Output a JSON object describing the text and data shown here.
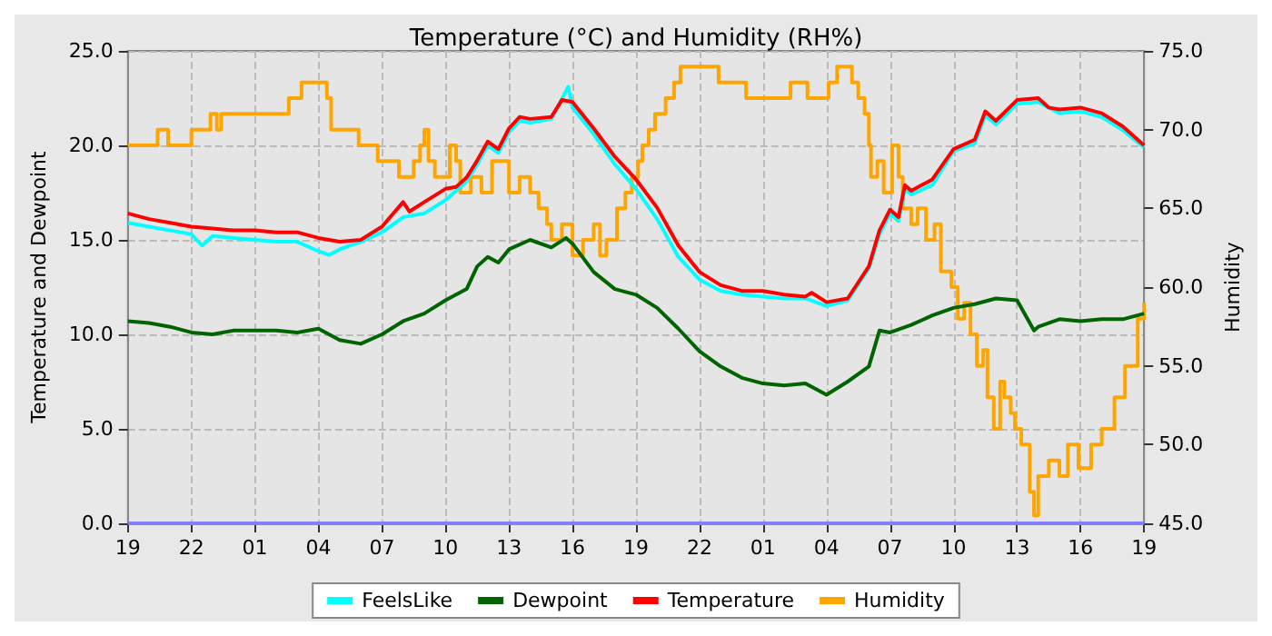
{
  "chart_data": {
    "type": "line",
    "title": "Temperature (°C) and Humidity (RH%)",
    "ylabel": "Temperature and Dewpoint",
    "y2label": "Humidity",
    "xlim": [
      "--01-01T19:00",
      "--01-03T19:00"
    ],
    "xticks": [
      {
        "value": "--01-01T19:00",
        "label": "19"
      },
      {
        "value": "--01-01T22:00",
        "label": "22"
      },
      {
        "value": "--01-02T01:00",
        "label": "01"
      },
      {
        "value": "--01-02T04:00",
        "label": "04"
      },
      {
        "value": "--01-02T07:00",
        "label": "07"
      },
      {
        "value": "--01-02T10:00",
        "label": "10"
      },
      {
        "value": "--01-02T13:00",
        "label": "13"
      },
      {
        "value": "--01-02T16:00",
        "label": "16"
      },
      {
        "value": "--01-02T19:00",
        "label": "19"
      },
      {
        "value": "--01-02T22:00",
        "label": "22"
      },
      {
        "value": "--01-03T01:00",
        "label": "01"
      },
      {
        "value": "--01-03T04:00",
        "label": "04"
      },
      {
        "value": "--01-03T07:00",
        "label": "07"
      },
      {
        "value": "--01-03T10:00",
        "label": "10"
      },
      {
        "value": "--01-03T13:00",
        "label": "13"
      },
      {
        "value": "--01-03T16:00",
        "label": "16"
      },
      {
        "value": "--01-03T19:00",
        "label": "19"
      }
    ],
    "ylim": [
      0,
      25
    ],
    "yticks": [
      {
        "value": 0,
        "label": "0.0"
      },
      {
        "value": 5,
        "label": "5.0"
      },
      {
        "value": 10,
        "label": "10.0"
      },
      {
        "value": 15,
        "label": "15.0"
      },
      {
        "value": 20,
        "label": "20.0"
      },
      {
        "value": 25,
        "label": "25.0"
      }
    ],
    "y2lim": [
      45,
      75
    ],
    "y2ticks": [
      {
        "value": 45,
        "label": "45.0"
      },
      {
        "value": 50,
        "label": "50.0"
      },
      {
        "value": 55,
        "label": "55.0"
      },
      {
        "value": 60,
        "label": "60.0"
      },
      {
        "value": 65,
        "label": "65.0"
      },
      {
        "value": 70,
        "label": "70.0"
      },
      {
        "value": 75,
        "label": "75.0"
      }
    ],
    "grid": true,
    "legend": "bottom",
    "marker": "none",
    "line_style": "solid",
    "series": [
      {
        "name": "FeelsLike",
        "color": "#00ffff",
        "x": [
          "--01-01T19:00",
          "--01-01T20:00",
          "--01-01T21:00",
          "--01-01T22:00",
          "--01-01T22:30",
          "--01-01T23:00",
          "--01-02T00:00",
          "--01-02T01:00",
          "--01-02T02:00",
          "--01-02T03:00",
          "--01-02T04:00",
          "--01-02T04:30",
          "--01-02T05:00",
          "--01-02T06:00",
          "--01-02T07:00",
          "--01-02T08:00",
          "--01-02T09:00",
          "--01-02T10:00",
          "--01-02T10:30",
          "--01-02T11:00",
          "--01-02T11:30",
          "--01-02T12:00",
          "--01-02T12:30",
          "--01-02T13:00",
          "--01-02T13:30",
          "--01-02T14:00",
          "--01-02T15:00",
          "--01-02T15:48",
          "--01-02T16:00",
          "--01-02T17:00",
          "--01-02T18:00",
          "--01-02T19:00",
          "--01-02T20:00",
          "--01-02T21:00",
          "--01-02T22:00",
          "--01-02T23:00",
          "--01-03T00:00",
          "--01-03T01:00",
          "--01-03T02:00",
          "--01-03T03:00",
          "--01-03T04:00",
          "--01-03T05:00",
          "--01-03T06:00",
          "--01-03T06:30",
          "--01-03T07:00",
          "--01-03T07:24",
          "--01-03T07:42",
          "--01-03T08:00",
          "--01-03T09:00",
          "--01-03T10:00",
          "--01-03T11:00",
          "--01-03T11:30",
          "--01-03T12:00",
          "--01-03T13:00",
          "--01-03T14:00",
          "--01-03T15:00",
          "--01-03T16:00",
          "--01-03T17:00",
          "--01-03T18:00",
          "--01-03T19:00"
        ],
        "values": [
          15.9,
          15.7,
          15.5,
          15.3,
          14.7,
          15.2,
          15.1,
          15.0,
          14.9,
          14.9,
          14.4,
          14.2,
          14.5,
          14.9,
          15.4,
          16.2,
          16.4,
          17.1,
          17.6,
          18.1,
          19.0,
          20.0,
          19.6,
          20.7,
          21.3,
          21.2,
          21.4,
          23.1,
          22.0,
          20.6,
          19.0,
          17.7,
          16.1,
          14.1,
          12.9,
          12.3,
          12.1,
          12.0,
          11.9,
          11.9,
          11.5,
          11.8,
          13.5,
          15.3,
          16.4,
          16.0,
          17.7,
          17.4,
          17.9,
          19.7,
          20.1,
          21.6,
          21.1,
          22.2,
          22.3,
          21.7,
          21.8,
          21.5,
          20.8,
          19.9
        ]
      },
      {
        "name": "Dewpoint",
        "color": "#006400",
        "x": [
          "--01-01T19:00",
          "--01-01T20:00",
          "--01-01T21:00",
          "--01-01T22:00",
          "--01-01T23:00",
          "--01-02T00:00",
          "--01-02T01:00",
          "--01-02T02:00",
          "--01-02T03:00",
          "--01-02T04:00",
          "--01-02T05:00",
          "--01-02T06:00",
          "--01-02T07:00",
          "--01-02T08:00",
          "--01-02T09:00",
          "--01-02T10:00",
          "--01-02T10:30",
          "--01-02T11:00",
          "--01-02T11:30",
          "--01-02T12:00",
          "--01-02T12:30",
          "--01-02T13:00",
          "--01-02T14:00",
          "--01-02T15:00",
          "--01-02T15:42",
          "--01-02T16:00",
          "--01-02T17:00",
          "--01-02T18:00",
          "--01-02T19:00",
          "--01-02T20:00",
          "--01-02T21:00",
          "--01-02T22:00",
          "--01-02T23:00",
          "--01-03T00:00",
          "--01-03T01:00",
          "--01-03T02:00",
          "--01-03T03:00",
          "--01-03T04:00",
          "--01-03T05:00",
          "--01-03T06:00",
          "--01-03T06:30",
          "--01-03T07:00",
          "--01-03T08:00",
          "--01-03T09:00",
          "--01-03T10:00",
          "--01-03T11:00",
          "--01-03T12:00",
          "--01-03T13:00",
          "--01-03T13:48",
          "--01-03T14:00",
          "--01-03T15:00",
          "--01-03T16:00",
          "--01-03T17:00",
          "--01-03T18:00",
          "--01-03T19:00"
        ],
        "values": [
          10.7,
          10.6,
          10.4,
          10.1,
          10.0,
          10.2,
          10.2,
          10.2,
          10.1,
          10.3,
          9.7,
          9.5,
          10.0,
          10.7,
          11.1,
          11.8,
          12.1,
          12.4,
          13.6,
          14.1,
          13.8,
          14.5,
          15.0,
          14.6,
          15.1,
          14.8,
          13.3,
          12.4,
          12.1,
          11.4,
          10.3,
          9.1,
          8.3,
          7.7,
          7.4,
          7.3,
          7.4,
          6.8,
          7.5,
          8.3,
          10.2,
          10.1,
          10.5,
          11.0,
          11.4,
          11.6,
          11.9,
          11.8,
          10.2,
          10.4,
          10.8,
          10.7,
          10.8,
          10.8,
          11.1
        ]
      },
      {
        "name": "Temperature",
        "color": "#ff0000",
        "x": [
          "--01-01T19:00",
          "--01-01T20:00",
          "--01-01T21:00",
          "--01-01T22:00",
          "--01-01T23:00",
          "--01-02T00:00",
          "--01-02T01:00",
          "--01-02T02:00",
          "--01-02T03:00",
          "--01-02T04:00",
          "--01-02T05:00",
          "--01-02T06:00",
          "--01-02T07:00",
          "--01-02T08:00",
          "--01-02T08:18",
          "--01-02T09:00",
          "--01-02T10:00",
          "--01-02T10:30",
          "--01-02T11:00",
          "--01-02T11:30",
          "--01-02T12:00",
          "--01-02T12:30",
          "--01-02T13:00",
          "--01-02T13:30",
          "--01-02T14:00",
          "--01-02T15:00",
          "--01-02T15:30",
          "--01-02T16:00",
          "--01-02T17:00",
          "--01-02T18:00",
          "--01-02T19:00",
          "--01-02T20:00",
          "--01-02T21:00",
          "--01-02T22:00",
          "--01-02T23:00",
          "--01-03T00:00",
          "--01-03T01:00",
          "--01-03T02:00",
          "--01-03T03:00",
          "--01-03T03:18",
          "--01-03T04:00",
          "--01-03T05:00",
          "--01-03T06:00",
          "--01-03T06:30",
          "--01-03T07:00",
          "--01-03T07:24",
          "--01-03T07:42",
          "--01-03T08:00",
          "--01-03T09:00",
          "--01-03T10:00",
          "--01-03T11:00",
          "--01-03T11:30",
          "--01-03T12:00",
          "--01-03T13:00",
          "--01-03T14:00",
          "--01-03T14:30",
          "--01-03T15:00",
          "--01-03T16:00",
          "--01-03T17:00",
          "--01-03T18:00",
          "--01-03T19:00"
        ],
        "values": [
          16.4,
          16.1,
          15.9,
          15.7,
          15.6,
          15.5,
          15.5,
          15.4,
          15.4,
          15.1,
          14.9,
          15.0,
          15.7,
          17.0,
          16.5,
          17.0,
          17.7,
          17.8,
          18.3,
          19.2,
          20.2,
          19.8,
          20.9,
          21.5,
          21.4,
          21.5,
          22.4,
          22.3,
          20.9,
          19.4,
          18.2,
          16.7,
          14.7,
          13.3,
          12.6,
          12.3,
          12.3,
          12.1,
          12.0,
          12.2,
          11.7,
          11.9,
          13.6,
          15.5,
          16.6,
          16.2,
          17.9,
          17.6,
          18.2,
          19.8,
          20.3,
          21.8,
          21.3,
          22.4,
          22.5,
          22.0,
          21.9,
          22.0,
          21.7,
          21.0,
          20.0
        ]
      },
      {
        "name": "Humidity",
        "type": "step",
        "axis": "y2",
        "color": "#ffa500",
        "x": [
          "--01-01T19:00",
          "--01-01T20:24",
          "--01-01T20:54",
          "--01-01T22:00",
          "--01-01T22:54",
          "--01-01T23:12",
          "--01-01T23:24",
          "--01-02T02:36",
          "--01-02T03:12",
          "--01-02T04:24",
          "--01-02T04:36",
          "--01-02T05:54",
          "--01-02T06:48",
          "--01-02T07:18",
          "--01-02T07:48",
          "--01-02T08:30",
          "--01-02T08:48",
          "--01-02T09:00",
          "--01-02T09:12",
          "--01-02T09:30",
          "--01-02T10:12",
          "--01-02T10:30",
          "--01-02T10:42",
          "--01-02T11:12",
          "--01-02T11:42",
          "--01-02T12:12",
          "--01-02T13:00",
          "--01-02T13:30",
          "--01-02T14:00",
          "--01-02T14:24",
          "--01-02T14:48",
          "--01-02T15:00",
          "--01-02T15:30",
          "--01-02T16:00",
          "--01-02T16:30",
          "--01-02T17:00",
          "--01-02T17:18",
          "--01-02T17:36",
          "--01-02T18:06",
          "--01-02T18:30",
          "--01-02T18:48",
          "--01-02T19:06",
          "--01-02T19:18",
          "--01-02T19:36",
          "--01-02T19:54",
          "--01-02T20:24",
          "--01-02T20:48",
          "--01-02T21:06",
          "--01-02T22:54",
          "--01-03T00:12",
          "--01-03T02:18",
          "--01-03T03:06",
          "--01-03T04:06",
          "--01-03T04:30",
          "--01-03T05:12",
          "--01-03T05:30",
          "--01-03T05:48",
          "--01-03T06:00",
          "--01-03T06:06",
          "--01-03T06:24",
          "--01-03T06:42",
          "--01-03T07:06",
          "--01-03T07:24",
          "--01-03T07:36",
          "--01-03T08:00",
          "--01-03T08:18",
          "--01-03T08:42",
          "--01-03T09:06",
          "--01-03T09:24",
          "--01-03T09:54",
          "--01-03T10:12",
          "--01-03T10:30",
          "--01-03T10:48",
          "--01-03T11:06",
          "--01-03T11:24",
          "--01-03T11:36",
          "--01-03T11:54",
          "--01-03T12:12",
          "--01-03T12:24",
          "--01-03T12:42",
          "--01-03T12:54",
          "--01-03T13:12",
          "--01-03T13:36",
          "--01-03T13:48",
          "--01-03T14:00",
          "--01-03T14:30",
          "--01-03T15:00",
          "--01-03T15:24",
          "--01-03T15:54",
          "--01-03T16:30",
          "--01-03T17:00",
          "--01-03T17:36",
          "--01-03T18:06",
          "--01-03T18:42",
          "--01-03T19:00"
        ],
        "values": [
          69,
          70,
          69,
          70,
          71,
          70,
          71,
          72,
          73,
          72,
          70,
          69,
          68,
          68,
          67,
          68,
          69,
          70,
          68,
          67,
          69,
          68,
          66,
          67,
          66,
          68,
          66,
          67,
          66,
          65,
          64,
          63,
          64,
          62,
          63,
          64,
          62,
          63,
          65,
          66,
          67,
          68,
          69,
          70,
          71,
          72,
          73,
          74,
          73,
          72,
          73,
          72,
          73,
          74,
          73,
          72,
          71,
          69,
          67,
          68,
          66,
          69,
          67,
          65,
          64,
          65,
          63,
          64,
          61,
          60,
          58,
          59,
          57,
          55,
          56,
          53,
          51,
          54,
          53,
          52,
          51,
          50,
          47,
          45.5,
          48,
          49,
          48,
          50,
          48.5,
          50,
          51,
          53,
          55,
          58,
          59
        ]
      },
      {
        "color": "#7f7fff",
        "x": [
          "--01-01T19:00",
          "--01-03T19:00"
        ],
        "values": [
          0,
          0
        ]
      }
    ]
  }
}
